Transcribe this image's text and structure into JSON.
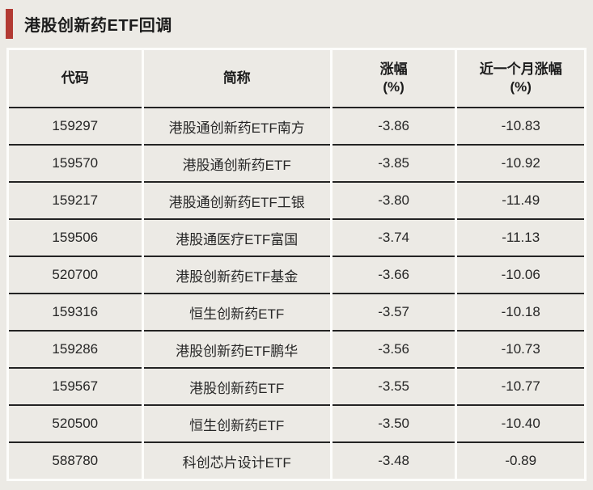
{
  "title": {
    "text": "港股创新药ETF回调"
  },
  "colors": {
    "accent_red": "#b23a33",
    "background": "#eceae5",
    "cell_background": "#eceae5",
    "grid_line_white": "#fdfdfb",
    "row_separator": "#232323",
    "text_dark": "#1c1c1c"
  },
  "table": {
    "headers": [
      {
        "line1": "代码",
        "line2": ""
      },
      {
        "line1": "简称",
        "line2": ""
      },
      {
        "line1": "涨幅",
        "line2": "(%)"
      },
      {
        "line1": "近一个月涨幅",
        "line2": "(%)"
      }
    ]
  },
  "chart_data": {
    "type": "table",
    "title": "港股创新药ETF回调",
    "columns": [
      "代码",
      "简称",
      "涨幅(%)",
      "近一个月涨幅(%)"
    ],
    "rows": [
      [
        "159297",
        "港股通创新药ETF南方",
        "-3.86",
        "-10.83"
      ],
      [
        "159570",
        "港股通创新药ETF",
        "-3.85",
        "-10.92"
      ],
      [
        "159217",
        "港股通创新药ETF工银",
        "-3.80",
        "-11.49"
      ],
      [
        "159506",
        "港股通医疗ETF富国",
        "-3.74",
        "-11.13"
      ],
      [
        "520700",
        "港股创新药ETF基金",
        "-3.66",
        "-10.06"
      ],
      [
        "159316",
        "恒生创新药ETF",
        "-3.57",
        "-10.18"
      ],
      [
        "159286",
        "港股创新药ETF鹏华",
        "-3.56",
        "-10.73"
      ],
      [
        "159567",
        "港股创新药ETF",
        "-3.55",
        "-10.77"
      ],
      [
        "520500",
        "恒生创新药ETF",
        "-3.50",
        "-10.40"
      ],
      [
        "588780",
        "科创芯片设计ETF",
        "-3.48",
        "-0.89"
      ]
    ]
  }
}
